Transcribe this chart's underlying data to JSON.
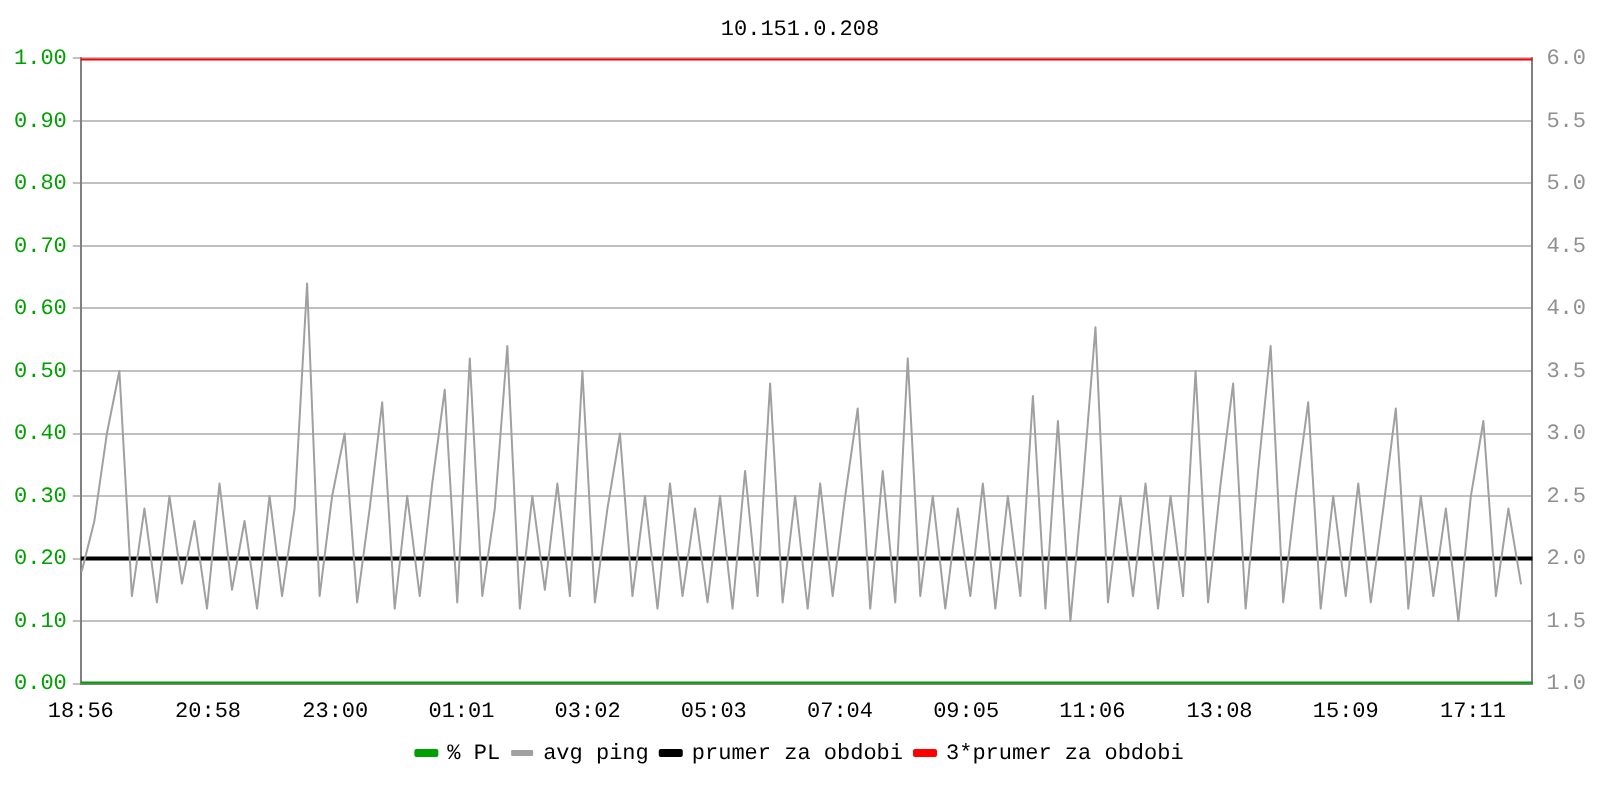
{
  "chart_data": {
    "type": "line",
    "title": "10.151.0.208",
    "xlim": [
      "--01-01T18:56",
      "--01-02T18:08"
    ],
    "xticks": [
      {
        "value": "--01-01T18:56",
        "label": "18:56"
      },
      {
        "value": "--01-01T20:58",
        "label": "20:58"
      },
      {
        "value": "--01-01T23:00",
        "label": "23:00"
      },
      {
        "value": "--01-02T01:01",
        "label": "01:01"
      },
      {
        "value": "--01-02T03:02",
        "label": "03:02"
      },
      {
        "value": "--01-02T05:03",
        "label": "05:03"
      },
      {
        "value": "--01-02T07:04",
        "label": "07:04"
      },
      {
        "value": "--01-02T09:05",
        "label": "09:05"
      },
      {
        "value": "--01-02T11:06",
        "label": "11:06"
      },
      {
        "value": "--01-02T13:08",
        "label": "13:08"
      },
      {
        "value": "--01-02T15:09",
        "label": "15:09"
      },
      {
        "value": "--01-02T17:11",
        "label": "17:11"
      }
    ],
    "ylim": [
      0,
      1
    ],
    "yticks": [
      {
        "value": 0,
        "label": "0.00"
      },
      {
        "value": 0.1,
        "label": "0.10"
      },
      {
        "value": 0.2,
        "label": "0.20"
      },
      {
        "value": 0.3,
        "label": "0.30"
      },
      {
        "value": 0.4,
        "label": "0.40"
      },
      {
        "value": 0.5,
        "label": "0.50"
      },
      {
        "value": 0.6,
        "label": "0.60"
      },
      {
        "value": 0.7,
        "label": "0.70"
      },
      {
        "value": 0.8,
        "label": "0.80"
      },
      {
        "value": 0.9,
        "label": "0.90"
      },
      {
        "value": 1,
        "label": "1.00"
      }
    ],
    "y2lim": [
      1,
      6
    ],
    "y2ticks": [
      {
        "value": 1,
        "label": "1.0"
      },
      {
        "value": 1.5,
        "label": "1.5"
      },
      {
        "value": 2,
        "label": "2.0"
      },
      {
        "value": 2.5,
        "label": "2.5"
      },
      {
        "value": 3,
        "label": "3.0"
      },
      {
        "value": 3.5,
        "label": "3.5"
      },
      {
        "value": 4,
        "label": "4.0"
      },
      {
        "value": 4.5,
        "label": "4.5"
      },
      {
        "value": 5,
        "label": "5.0"
      },
      {
        "value": 5.5,
        "label": "5.5"
      },
      {
        "value": 6,
        "label": "6.0"
      }
    ],
    "grid": "y",
    "legend": "bottom",
    "marker": "none",
    "line_style": "solid",
    "series": [
      {
        "name": "% PL",
        "color": "#00a000",
        "type": "line",
        "x": [
          "--01-01T18:56",
          "--01-02T18:08"
        ],
        "values": [
          0,
          0
        ]
      },
      {
        "name": "avg ping",
        "color": "#a0a0a0",
        "type": "line",
        "axis": "y2",
        "x": [
          "--01-01T18:57",
          "--01-01T19:09",
          "--01-01T19:21",
          "--01-01T19:33",
          "--01-01T19:45",
          "--01-01T19:57",
          "--01-01T20:09",
          "--01-01T20:21",
          "--01-01T20:33",
          "--01-01T20:45",
          "--01-01T20:57",
          "--01-01T21:09",
          "--01-01T21:21",
          "--01-01T21:33",
          "--01-01T21:45",
          "--01-01T21:57",
          "--01-01T22:09",
          "--01-01T22:21",
          "--01-01T22:33",
          "--01-01T22:45",
          "--01-01T22:57",
          "--01-01T23:09",
          "--01-01T23:21",
          "--01-01T23:33",
          "--01-01T23:45",
          "--01-01T23:57",
          "--01-02T00:09",
          "--01-02T00:21",
          "--01-02T00:33",
          "--01-02T00:45",
          "--01-02T00:57",
          "--01-02T01:09",
          "--01-02T01:21",
          "--01-02T01:33",
          "--01-02T01:45",
          "--01-02T01:57",
          "--01-02T02:09",
          "--01-02T02:21",
          "--01-02T02:33",
          "--01-02T02:45",
          "--01-02T02:57",
          "--01-02T03:09",
          "--01-02T03:21",
          "--01-02T03:33",
          "--01-02T03:45",
          "--01-02T03:57",
          "--01-02T04:09",
          "--01-02T04:21",
          "--01-02T04:33",
          "--01-02T04:45",
          "--01-02T04:57",
          "--01-02T05:09",
          "--01-02T05:21",
          "--01-02T05:33",
          "--01-02T05:45",
          "--01-02T05:57",
          "--01-02T06:09",
          "--01-02T06:21",
          "--01-02T06:33",
          "--01-02T06:45",
          "--01-02T06:57",
          "--01-02T07:09",
          "--01-02T07:21",
          "--01-02T07:33",
          "--01-02T07:45",
          "--01-02T07:57",
          "--01-02T08:09",
          "--01-02T08:21",
          "--01-02T08:33",
          "--01-02T08:45",
          "--01-02T08:57",
          "--01-02T09:09",
          "--01-02T09:21",
          "--01-02T09:33",
          "--01-02T09:45",
          "--01-02T09:57",
          "--01-02T10:09",
          "--01-02T10:21",
          "--01-02T10:33",
          "--01-02T10:45",
          "--01-02T10:57",
          "--01-02T11:09",
          "--01-02T11:21",
          "--01-02T11:33",
          "--01-02T11:45",
          "--01-02T11:57",
          "--01-02T12:09",
          "--01-02T12:21",
          "--01-02T12:33",
          "--01-02T12:45",
          "--01-02T12:57",
          "--01-02T13:09",
          "--01-02T13:21",
          "--01-02T13:33",
          "--01-02T13:45",
          "--01-02T13:57",
          "--01-02T14:09",
          "--01-02T14:21",
          "--01-02T14:33",
          "--01-02T14:45",
          "--01-02T14:57",
          "--01-02T15:09",
          "--01-02T15:21",
          "--01-02T15:33",
          "--01-02T15:45",
          "--01-02T15:57",
          "--01-02T16:09",
          "--01-02T16:21",
          "--01-02T16:33",
          "--01-02T16:45",
          "--01-02T16:57",
          "--01-02T17:09",
          "--01-02T17:21",
          "--01-02T17:33",
          "--01-02T17:45",
          "--01-02T17:57"
        ],
        "values": [
          1.9,
          2.3,
          3.0,
          3.5,
          1.7,
          2.4,
          1.65,
          2.5,
          1.8,
          2.3,
          1.6,
          2.6,
          1.75,
          2.3,
          1.6,
          2.5,
          1.7,
          2.4,
          4.2,
          1.7,
          2.5,
          3.0,
          1.65,
          2.4,
          3.25,
          1.6,
          2.5,
          1.7,
          2.6,
          3.35,
          1.65,
          3.6,
          1.7,
          2.4,
          3.7,
          1.6,
          2.5,
          1.75,
          2.6,
          1.7,
          3.5,
          1.65,
          2.4,
          3.0,
          1.7,
          2.5,
          1.6,
          2.6,
          1.7,
          2.4,
          1.65,
          2.5,
          1.6,
          2.7,
          1.7,
          3.4,
          1.65,
          2.5,
          1.6,
          2.6,
          1.7,
          2.5,
          3.2,
          1.6,
          2.7,
          1.65,
          3.6,
          1.7,
          2.5,
          1.6,
          2.4,
          1.7,
          2.6,
          1.6,
          2.5,
          1.7,
          3.3,
          1.6,
          3.1,
          1.5,
          2.6,
          3.85,
          1.65,
          2.5,
          1.7,
          2.6,
          1.6,
          2.5,
          1.7,
          3.5,
          1.65,
          2.6,
          3.4,
          1.6,
          2.7,
          3.7,
          1.65,
          2.5,
          3.25,
          1.6,
          2.5,
          1.7,
          2.6,
          1.65,
          2.4,
          3.2,
          1.6,
          2.5,
          1.7,
          2.4,
          1.5,
          2.5,
          3.1,
          1.7,
          2.4,
          1.8
        ]
      },
      {
        "name": "prumer za obdobi",
        "color": "#000000",
        "type": "line",
        "axis": "y2",
        "x": [
          "--01-01T18:56",
          "--01-02T18:08"
        ],
        "values": [
          2.0,
          2.0
        ]
      },
      {
        "name": "3*prumer za obdobi",
        "color": "#ff0000",
        "type": "line",
        "axis": "y2",
        "x": [
          "--01-01T18:56",
          "--01-02T18:08"
        ],
        "values": [
          6.0,
          6.0
        ]
      }
    ]
  }
}
